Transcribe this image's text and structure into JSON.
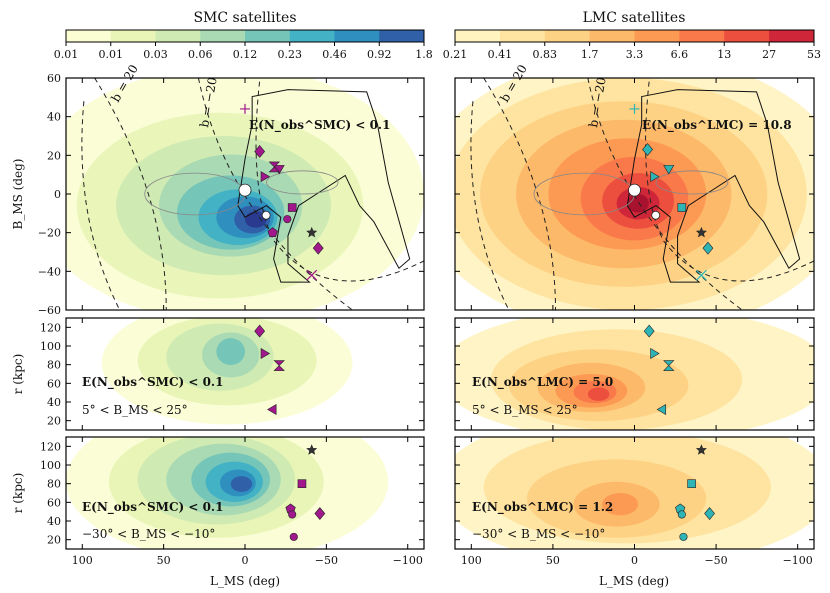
{
  "colorbars": [
    {
      "title": "SMC satellites",
      "ticks": [
        "0.01",
        "0.01",
        "0.03",
        "0.06",
        "0.12",
        "0.23",
        "0.46",
        "0.92",
        "1.8"
      ],
      "colors": [
        "#fbfdd2",
        "#e8f5b6",
        "#cfeab2",
        "#a9dab3",
        "#76c5b9",
        "#42b2c4",
        "#2f8fbf",
        "#2f60a8",
        "#2a3a8e"
      ]
    },
    {
      "title": "LMC satellites",
      "ticks": [
        "0.21",
        "0.41",
        "0.83",
        "1.7",
        "3.3",
        "6.6",
        "13",
        "27",
        "53"
      ],
      "colors": [
        "#fff3c0",
        "#fee4a0",
        "#fed284",
        "#fdb96a",
        "#fc9a54",
        "#f9794a",
        "#ec4f3e",
        "#cf2639",
        "#a8122e"
      ]
    }
  ],
  "axes": {
    "xlabel": "L_MS (deg)",
    "x_ticks": [
      "100",
      "50",
      "0",
      "−50",
      "−100"
    ],
    "y_top_label": "B_MS (deg)",
    "y_top_ticks": [
      "60",
      "40",
      "20",
      "0",
      "−20",
      "−40",
      "−60"
    ],
    "y_r_label": "r (kpc)",
    "y_r_ticks": [
      "120",
      "100",
      "80",
      "60",
      "40",
      "20"
    ]
  },
  "panel_text": {
    "smc_top": "E(N_obs^SMC) < 0.1",
    "lmc_top": "E(N_obs^LMC) = 10.8",
    "smc_mid": "E(N_obs^SMC) < 0.1",
    "lmc_mid": "E(N_obs^LMC) = 5.0",
    "mid_range": "5° < B_MS < 25°",
    "smc_bot": "E(N_obs^SMC) < 0.1",
    "lmc_bot": "E(N_obs^LMC) = 1.2",
    "bot_range": "−30° < B_MS < −10°",
    "b_label_1": "b = 20",
    "b_label_2": "b = −20"
  },
  "chart_data": [
    {
      "type": "heatmap",
      "panel": "smc_sky",
      "title": "SMC satellites",
      "xlabel": "L_MS (deg)",
      "ylabel": "B_MS (deg)",
      "xlim": [
        110,
        -110
      ],
      "ylim": [
        -60,
        60
      ],
      "peak": [
        5,
        -12
      ],
      "satellites": [
        {
          "marker": "diamond",
          "L": -9,
          "B": 22
        },
        {
          "marker": "plus",
          "L": 0,
          "B": 44
        },
        {
          "marker": "tri-down",
          "L": -21,
          "B": 13
        },
        {
          "marker": "tri-right",
          "L": -12,
          "B": 9
        },
        {
          "marker": "hourglass",
          "L": -18,
          "B": 14
        },
        {
          "marker": "square",
          "L": -29,
          "B": -7
        },
        {
          "marker": "pentagon",
          "L": -17,
          "B": -20
        },
        {
          "marker": "star",
          "L": -41,
          "B": -20
        },
        {
          "marker": "circle",
          "L": -26,
          "B": -13
        },
        {
          "marker": "diamond",
          "L": -45,
          "B": -28
        },
        {
          "marker": "x",
          "L": -41,
          "B": -42
        }
      ]
    },
    {
      "type": "heatmap",
      "panel": "lmc_sky",
      "title": "LMC satellites",
      "xlabel": "L_MS (deg)",
      "ylabel": "B_MS (deg)",
      "xlim": [
        110,
        -110
      ],
      "ylim": [
        -60,
        60
      ],
      "peak": [
        5,
        -5
      ],
      "satellites": [
        {
          "marker": "diamond",
          "L": -8,
          "B": 23
        },
        {
          "marker": "plus",
          "L": 0,
          "B": 44
        },
        {
          "marker": "tri-down",
          "L": -21,
          "B": 13
        },
        {
          "marker": "tri-right",
          "L": -12,
          "B": 9
        },
        {
          "marker": "square",
          "L": -29,
          "B": -7
        },
        {
          "marker": "star",
          "L": -41,
          "B": -20
        },
        {
          "marker": "diamond",
          "L": -45,
          "B": -28
        },
        {
          "marker": "x",
          "L": -41,
          "B": -42
        }
      ]
    },
    {
      "type": "heatmap",
      "panel": "smc_mid",
      "xlabel": "L_MS (deg)",
      "ylabel": "r (kpc)",
      "xlim": [
        110,
        -110
      ],
      "ylim": [
        10,
        130
      ],
      "B_range": [
        5,
        25
      ],
      "satellites": [
        {
          "marker": "diamond",
          "L": -9,
          "r": 116
        },
        {
          "marker": "tri-right",
          "L": -12,
          "r": 92
        },
        {
          "marker": "hourglass",
          "L": -21,
          "r": 79
        },
        {
          "marker": "tri-left",
          "L": -17,
          "r": 32
        }
      ]
    },
    {
      "type": "heatmap",
      "panel": "lmc_mid",
      "xlabel": "L_MS (deg)",
      "ylabel": "r (kpc)",
      "xlim": [
        110,
        -110
      ],
      "ylim": [
        10,
        130
      ],
      "B_range": [
        5,
        25
      ],
      "satellites": [
        {
          "marker": "diamond",
          "L": -9,
          "r": 116
        },
        {
          "marker": "tri-right",
          "L": -12,
          "r": 92
        },
        {
          "marker": "hourglass",
          "L": -21,
          "r": 79
        },
        {
          "marker": "tri-left",
          "L": -17,
          "r": 32
        }
      ]
    },
    {
      "type": "heatmap",
      "panel": "smc_bot",
      "xlabel": "L_MS (deg)",
      "ylabel": "r (kpc)",
      "xlim": [
        110,
        -110
      ],
      "ylim": [
        10,
        130
      ],
      "B_range": [
        -30,
        -10
      ],
      "satellites": [
        {
          "marker": "star",
          "L": -41,
          "r": 116
        },
        {
          "marker": "square",
          "L": -35,
          "r": 80
        },
        {
          "marker": "pentagon",
          "L": -28,
          "r": 53
        },
        {
          "marker": "circle",
          "L": -29,
          "r": 47
        },
        {
          "marker": "diamond",
          "L": -46,
          "r": 48
        },
        {
          "marker": "circle",
          "L": -30,
          "r": 23
        }
      ]
    },
    {
      "type": "heatmap",
      "panel": "lmc_bot",
      "xlabel": "L_MS (deg)",
      "ylabel": "r (kpc)",
      "xlim": [
        110,
        -110
      ],
      "ylim": [
        10,
        130
      ],
      "B_range": [
        -30,
        -10
      ],
      "satellites": [
        {
          "marker": "star",
          "L": -41,
          "r": 116
        },
        {
          "marker": "square",
          "L": -35,
          "r": 80
        },
        {
          "marker": "pentagon",
          "L": -28,
          "r": 53
        },
        {
          "marker": "circle",
          "L": -29,
          "r": 47
        },
        {
          "marker": "diamond",
          "L": -46,
          "r": 48
        },
        {
          "marker": "circle",
          "L": -30,
          "r": 23
        }
      ]
    }
  ]
}
